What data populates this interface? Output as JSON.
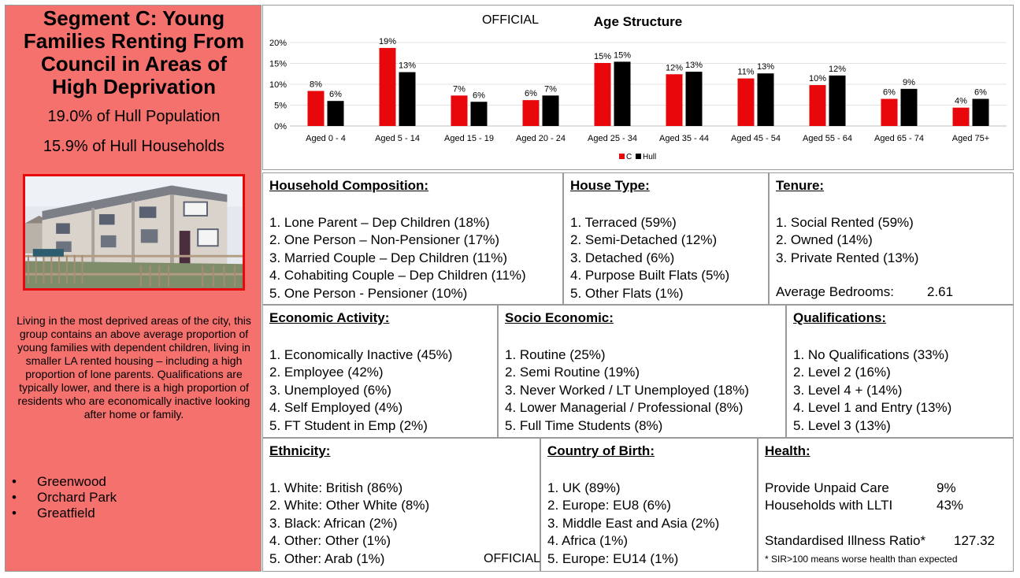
{
  "segment": {
    "title_lines": [
      "Segment C: Young",
      "Families Renting From",
      "Council in Areas of",
      "High Deprivation"
    ],
    "population": "19.0% of Hull Population",
    "households": "15.9% of Hull Households",
    "description": "Living in the most deprived areas of the city, this group contains an above average proportion of young families with dependent children, living in smaller LA rented housing – including a high proportion of lone parents. Qualifications are typically lower, and there is a high proportion of residents who are economically inactive looking after home or family.",
    "areas": [
      "Greenwood",
      "Orchard Park",
      "Greatfield"
    ]
  },
  "official_top": "OFFICIAL",
  "official_bottom": "OFFICIAL",
  "chart_data": {
    "type": "bar",
    "title": "Age Structure",
    "categories": [
      "Aged 0 - 4",
      "Aged 5 - 14",
      "Aged 15 - 19",
      "Aged 20 - 24",
      "Aged 25 - 34",
      "Aged 35 - 44",
      "Aged 45 - 54",
      "Aged 55 - 64",
      "Aged 65 - 74",
      "Aged 75+"
    ],
    "series": [
      {
        "name": "C",
        "color": "#e8070a",
        "values": [
          8.4,
          18.7,
          7.3,
          6.2,
          15.1,
          12.4,
          11.4,
          9.8,
          6.5,
          4.4
        ],
        "labels": [
          "8%",
          "19%",
          "7%",
          "6%",
          "15%",
          "12%",
          "11%",
          "10%",
          "6%",
          "4%"
        ]
      },
      {
        "name": "Hull",
        "color": "#000000",
        "values": [
          6.0,
          12.9,
          5.8,
          7.3,
          15.4,
          13.0,
          12.6,
          12.1,
          8.9,
          6.5
        ],
        "labels": [
          "6%",
          "13%",
          "6%",
          "7%",
          "15%",
          "13%",
          "13%",
          "12%",
          "9%",
          "6%"
        ]
      }
    ],
    "yticks": [
      "0%",
      "5%",
      "10%",
      "15%",
      "20%"
    ],
    "ylim": [
      0,
      20
    ],
    "grid": true,
    "legend": "bottom"
  },
  "household": {
    "title": "Household Composition:",
    "items": [
      "1. Lone Parent – Dep Children (18%)",
      "2. One Person – Non-Pensioner (17%)",
      "3. Married Couple – Dep Children (11%)",
      "4. Cohabiting Couple – Dep Children (11%)",
      "5. One Person - Pensioner (10%)"
    ]
  },
  "house_type": {
    "title": "House Type:",
    "items": [
      "1. Terraced (59%)",
      "2. Semi-Detached (12%)",
      "3. Detached (6%)",
      "4. Purpose Built Flats (5%)",
      "5. Other Flats (1%)"
    ]
  },
  "tenure": {
    "title": "Tenure:",
    "items": [
      "1. Social Rented (59%)",
      "2. Owned (14%)",
      "3. Private Rented (13%)"
    ],
    "bedrooms_label": "Average Bedrooms:",
    "bedrooms_value": "2.61"
  },
  "economic": {
    "title": "Economic Activity:",
    "items": [
      "1. Economically Inactive (45%)",
      "2. Employee (42%)",
      "3. Unemployed (6%)",
      "4. Self Employed (4%)",
      "5. FT Student in Emp (2%)"
    ]
  },
  "socio": {
    "title": "Socio Economic:",
    "items": [
      "1. Routine (25%)",
      "2. Semi Routine (19%)",
      "3. Never Worked / LT Unemployed (18%)",
      "4. Lower Managerial / Professional (8%)",
      "5. Full Time Students (8%)"
    ]
  },
  "qualifications": {
    "title": "Qualifications:",
    "items": [
      "1. No Qualifications (33%)",
      "2. Level 2 (16%)",
      "3. Level 4 + (14%)",
      "4. Level 1 and Entry (13%)",
      "5. Level 3 (13%)"
    ]
  },
  "ethnicity": {
    "title": "Ethnicity:",
    "items": [
      "1. White: British (86%)",
      "2. White: Other White (8%)",
      "3. Black: African (2%)",
      "4. Other: Other (1%)",
      "5. Other: Arab (1%)"
    ]
  },
  "birth": {
    "title": "Country of Birth:",
    "items": [
      "1. UK (89%)",
      "2. Europe: EU8 (6%)",
      "3. Middle East and Asia (2%)",
      "4. Africa (1%)",
      "5. Europe: EU14 (1%)"
    ]
  },
  "health": {
    "title": "Health:",
    "care_label": "Provide Unpaid Care",
    "care_value": "9%",
    "llti_label": "Households with LLTI",
    "llti_value": "43%",
    "sir_label": "Standardised Illness Ratio*",
    "sir_value": "127.32",
    "note": "* SIR>100 means worse health than expected"
  }
}
